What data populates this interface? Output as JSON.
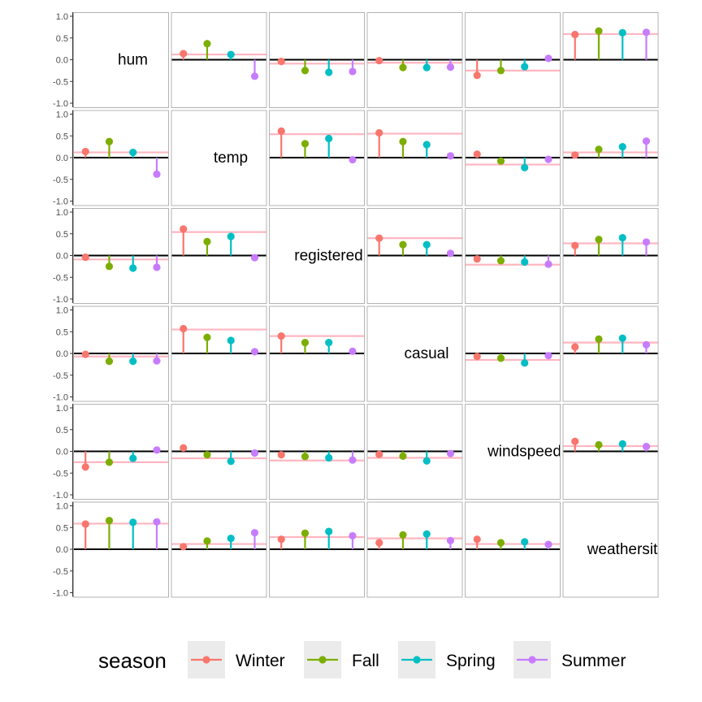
{
  "chart_data": {
    "type": "lollipop-matrix",
    "variables": [
      "hum",
      "temp",
      "registered",
      "casual",
      "windspeed",
      "weathersit"
    ],
    "y_ticks": [
      "1.0",
      "0.5",
      "0.0",
      "-0.5",
      "-1.0"
    ],
    "ylim": [
      -1.0,
      1.0
    ],
    "legend": {
      "title": "season",
      "position": "bottom"
    },
    "series": [
      {
        "name": "Winter",
        "color": "#F8766D"
      },
      {
        "name": "Fall",
        "color": "#7CAE00"
      },
      {
        "name": "Spring",
        "color": "#00BFC4"
      },
      {
        "name": "Summer",
        "color": "#C77CFF"
      }
    ],
    "overall_line_color": "#FFB6C1",
    "zero_line_color": "#000000",
    "cells": [
      {
        "row": "hum",
        "col": "temp",
        "values": [
          0.14,
          0.37,
          0.12,
          -0.38
        ],
        "overall": 0.12
      },
      {
        "row": "hum",
        "col": "registered",
        "values": [
          -0.04,
          -0.25,
          -0.29,
          -0.27
        ],
        "overall": -0.09
      },
      {
        "row": "hum",
        "col": "casual",
        "values": [
          -0.02,
          -0.18,
          -0.18,
          -0.17
        ],
        "overall": -0.07
      },
      {
        "row": "hum",
        "col": "windspeed",
        "values": [
          -0.36,
          -0.25,
          -0.16,
          0.03
        ],
        "overall": -0.25
      },
      {
        "row": "hum",
        "col": "weathersit",
        "values": [
          0.58,
          0.66,
          0.62,
          0.63
        ],
        "overall": 0.59
      },
      {
        "row": "temp",
        "col": "hum",
        "values": [
          0.14,
          0.37,
          0.12,
          -0.38
        ],
        "overall": 0.12
      },
      {
        "row": "temp",
        "col": "registered",
        "values": [
          0.61,
          0.32,
          0.44,
          -0.05
        ],
        "overall": 0.54
      },
      {
        "row": "temp",
        "col": "casual",
        "values": [
          0.57,
          0.37,
          0.3,
          0.04
        ],
        "overall": 0.55
      },
      {
        "row": "temp",
        "col": "windspeed",
        "values": [
          0.08,
          -0.08,
          -0.23,
          -0.04
        ],
        "overall": -0.16
      },
      {
        "row": "temp",
        "col": "weathersit",
        "values": [
          0.06,
          0.19,
          0.25,
          0.38
        ],
        "overall": 0.12
      },
      {
        "row": "registered",
        "col": "hum",
        "values": [
          -0.04,
          -0.25,
          -0.29,
          -0.27
        ],
        "overall": -0.09
      },
      {
        "row": "registered",
        "col": "temp",
        "values": [
          0.61,
          0.32,
          0.44,
          -0.05
        ],
        "overall": 0.54
      },
      {
        "row": "registered",
        "col": "casual",
        "values": [
          0.4,
          0.25,
          0.25,
          0.05
        ],
        "overall": 0.4
      },
      {
        "row": "registered",
        "col": "windspeed",
        "values": [
          -0.08,
          -0.12,
          -0.15,
          -0.2
        ],
        "overall": -0.21
      },
      {
        "row": "registered",
        "col": "weathersit",
        "values": [
          0.23,
          0.37,
          0.41,
          0.31
        ],
        "overall": 0.28
      },
      {
        "row": "casual",
        "col": "hum",
        "values": [
          -0.02,
          -0.18,
          -0.18,
          -0.17
        ],
        "overall": -0.07
      },
      {
        "row": "casual",
        "col": "temp",
        "values": [
          0.57,
          0.37,
          0.3,
          0.04
        ],
        "overall": 0.55
      },
      {
        "row": "casual",
        "col": "registered",
        "values": [
          0.4,
          0.25,
          0.25,
          0.05
        ],
        "overall": 0.4
      },
      {
        "row": "casual",
        "col": "windspeed",
        "values": [
          -0.07,
          -0.11,
          -0.22,
          -0.05
        ],
        "overall": -0.15
      },
      {
        "row": "casual",
        "col": "weathersit",
        "values": [
          0.15,
          0.33,
          0.35,
          0.2
        ],
        "overall": 0.25
      },
      {
        "row": "windspeed",
        "col": "hum",
        "values": [
          -0.36,
          -0.25,
          -0.16,
          0.03
        ],
        "overall": -0.25
      },
      {
        "row": "windspeed",
        "col": "temp",
        "values": [
          0.08,
          -0.08,
          -0.23,
          -0.04
        ],
        "overall": -0.16
      },
      {
        "row": "windspeed",
        "col": "registered",
        "values": [
          -0.08,
          -0.12,
          -0.15,
          -0.2
        ],
        "overall": -0.21
      },
      {
        "row": "windspeed",
        "col": "casual",
        "values": [
          -0.07,
          -0.11,
          -0.22,
          -0.05
        ],
        "overall": -0.15
      },
      {
        "row": "windspeed",
        "col": "weathersit",
        "values": [
          0.23,
          0.15,
          0.17,
          0.11
        ],
        "overall": 0.12
      },
      {
        "row": "weathersit",
        "col": "hum",
        "values": [
          0.58,
          0.66,
          0.62,
          0.63
        ],
        "overall": 0.59
      },
      {
        "row": "weathersit",
        "col": "temp",
        "values": [
          0.06,
          0.19,
          0.25,
          0.38
        ],
        "overall": 0.12
      },
      {
        "row": "weathersit",
        "col": "registered",
        "values": [
          0.23,
          0.37,
          0.41,
          0.31
        ],
        "overall": 0.28
      },
      {
        "row": "weathersit",
        "col": "casual",
        "values": [
          0.15,
          0.33,
          0.35,
          0.2
        ],
        "overall": 0.25
      },
      {
        "row": "weathersit",
        "col": "windspeed",
        "values": [
          0.23,
          0.15,
          0.17,
          0.11
        ],
        "overall": 0.12
      }
    ]
  }
}
